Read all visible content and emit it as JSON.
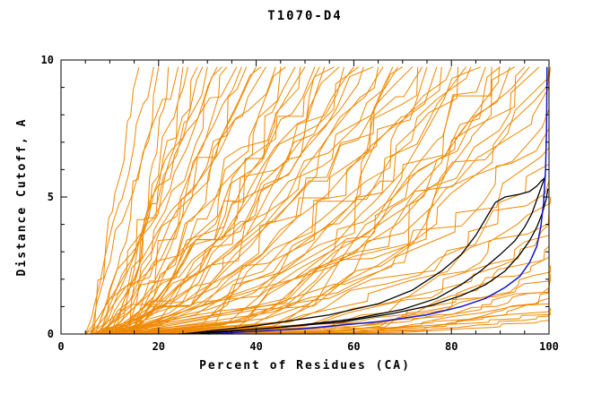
{
  "title": "T1070-D4",
  "chart_data": {
    "type": "line",
    "title": "T1070-D4",
    "xlabel": "Percent of Residues (CA)",
    "ylabel": "Distance Cutoff, A",
    "xlim": [
      0,
      100
    ],
    "ylim": [
      0,
      10
    ],
    "x_ticks": [
      0,
      20,
      40,
      60,
      80,
      100
    ],
    "y_ticks": [
      0,
      5,
      10
    ],
    "x_minor_step": 5,
    "y_minor_step": 1,
    "grid": false,
    "legend": "none",
    "frame": "full-box",
    "series_groups": [
      {
        "name": "predicted-model-curves",
        "color": "#ef8800",
        "style": "jagged-monotone-cumulative",
        "curve_format": [
          "x_start",
          "x_end",
          "y_end",
          "shape_exponent",
          "seed"
        ],
        "curves": [
          [
            6,
            16,
            9.75,
            1.0,
            1
          ],
          [
            8,
            20,
            9.75,
            1.1,
            2
          ],
          [
            5,
            24,
            9.75,
            0.9,
            3
          ],
          [
            10,
            28,
            9.75,
            1.2,
            4
          ],
          [
            7,
            30,
            9.75,
            1.0,
            5
          ],
          [
            12,
            34,
            9.75,
            1.3,
            6
          ],
          [
            6,
            36,
            9.75,
            0.95,
            7
          ],
          [
            9,
            40,
            9.75,
            1.1,
            8
          ],
          [
            14,
            22,
            9.75,
            1.0,
            9
          ],
          [
            11,
            26,
            9.75,
            1.2,
            10
          ],
          [
            8,
            32,
            9.75,
            0.9,
            11
          ],
          [
            13,
            38,
            9.75,
            1.15,
            12
          ],
          [
            5,
            19,
            9.75,
            1.05,
            13
          ],
          [
            15,
            41,
            9.75,
            1.0,
            14
          ],
          [
            10,
            25,
            9.75,
            1.3,
            15
          ],
          [
            7,
            29,
            9.75,
            1.1,
            16
          ],
          [
            12,
            37,
            9.75,
            0.95,
            17
          ],
          [
            9,
            33,
            9.75,
            1.2,
            18
          ],
          [
            6,
            42,
            9.75,
            1.2,
            19
          ],
          [
            10,
            46,
            9.75,
            1.4,
            20
          ],
          [
            8,
            50,
            9.75,
            1.1,
            21
          ],
          [
            12,
            54,
            9.75,
            1.5,
            22
          ],
          [
            7,
            58,
            9.75,
            1.3,
            23
          ],
          [
            14,
            62,
            9.75,
            1.2,
            24
          ],
          [
            9,
            66,
            9.75,
            1.6,
            25
          ],
          [
            11,
            70,
            9.75,
            1.4,
            26
          ],
          [
            5,
            44,
            9.75,
            1.0,
            27
          ],
          [
            13,
            48,
            9.75,
            1.5,
            28
          ],
          [
            8,
            52,
            9.75,
            1.2,
            29
          ],
          [
            10,
            56,
            9.75,
            1.7,
            30
          ],
          [
            6,
            60,
            9.75,
            1.3,
            31
          ],
          [
            15,
            64,
            9.75,
            1.1,
            32
          ],
          [
            9,
            68,
            9.75,
            1.5,
            33
          ],
          [
            12,
            45,
            9.75,
            1.35,
            34
          ],
          [
            7,
            49,
            9.75,
            1.6,
            35
          ],
          [
            11,
            53,
            9.75,
            1.25,
            36
          ],
          [
            14,
            57,
            9.75,
            1.45,
            37
          ],
          [
            8,
            61,
            9.75,
            1.15,
            38
          ],
          [
            10,
            65,
            9.75,
            1.55,
            39
          ],
          [
            13,
            69,
            9.75,
            1.3,
            40
          ],
          [
            7,
            72,
            9.75,
            1.6,
            41
          ],
          [
            10,
            75,
            9.75,
            1.9,
            42
          ],
          [
            12,
            78,
            9.75,
            1.7,
            43
          ],
          [
            8,
            81,
            9.75,
            2.1,
            44
          ],
          [
            14,
            84,
            9.75,
            1.8,
            45
          ],
          [
            9,
            87,
            9.75,
            2.3,
            46
          ],
          [
            11,
            90,
            9.75,
            2.0,
            47
          ],
          [
            13,
            93,
            9.75,
            2.4,
            48
          ],
          [
            6,
            96,
            9.75,
            2.2,
            49
          ],
          [
            10,
            99,
            9.75,
            2.6,
            50
          ],
          [
            8,
            74,
            9.75,
            1.7,
            51
          ],
          [
            12,
            77,
            9.75,
            2.0,
            52
          ],
          [
            15,
            80,
            9.75,
            1.8,
            53
          ],
          [
            9,
            83,
            9.75,
            2.2,
            54
          ],
          [
            11,
            86,
            9.75,
            1.9,
            55
          ],
          [
            7,
            89,
            9.75,
            2.4,
            56
          ],
          [
            13,
            92,
            9.75,
            2.1,
            57
          ],
          [
            10,
            95,
            9.75,
            2.5,
            58
          ],
          [
            8,
            98,
            9.75,
            2.3,
            59
          ],
          [
            14,
            100,
            9.75,
            2.7,
            60
          ],
          [
            6,
            73,
            9.75,
            1.8,
            61
          ],
          [
            12,
            88,
            9.75,
            2.2,
            62
          ],
          [
            10,
            100,
            9.0,
            2.0,
            63
          ],
          [
            12,
            100,
            8.2,
            2.2,
            64
          ],
          [
            8,
            100,
            7.5,
            2.4,
            65
          ],
          [
            14,
            100,
            6.8,
            2.0,
            66
          ],
          [
            9,
            100,
            6.2,
            2.6,
            67
          ],
          [
            11,
            100,
            5.6,
            2.3,
            68
          ],
          [
            13,
            100,
            5.0,
            2.8,
            69
          ],
          [
            7,
            100,
            4.5,
            2.5,
            70
          ],
          [
            15,
            100,
            4.0,
            3.0,
            71
          ],
          [
            10,
            100,
            3.6,
            2.7,
            72
          ],
          [
            12,
            100,
            3.2,
            3.2,
            73
          ],
          [
            8,
            100,
            2.8,
            2.9,
            74
          ],
          [
            14,
            100,
            2.5,
            3.4,
            75
          ],
          [
            9,
            100,
            2.2,
            3.0,
            76
          ],
          [
            11,
            100,
            1.9,
            3.6,
            77
          ],
          [
            13,
            100,
            1.7,
            3.2,
            78
          ],
          [
            7,
            100,
            1.5,
            3.8,
            79
          ],
          [
            15,
            100,
            1.3,
            3.4,
            80
          ],
          [
            10,
            100,
            1.1,
            4.0,
            81
          ],
          [
            12,
            100,
            0.95,
            3.6,
            82
          ],
          [
            8,
            100,
            0.8,
            4.2,
            83
          ],
          [
            11,
            100,
            0.65,
            3.8,
            84
          ],
          [
            9,
            100,
            0.5,
            4.4,
            85
          ]
        ]
      },
      {
        "name": "reference-curves-black",
        "color": "#000000",
        "points_format": "[x,y]",
        "curves": [
          [
            [
              25,
              0
            ],
            [
              40,
              0.3
            ],
            [
              55,
              0.7
            ],
            [
              65,
              1.1
            ],
            [
              72,
              1.6
            ],
            [
              78,
              2.3
            ],
            [
              82,
              2.9
            ],
            [
              85,
              3.6
            ],
            [
              87,
              4.2
            ],
            [
              89,
              4.8
            ],
            [
              91,
              5.0
            ],
            [
              94,
              5.1
            ],
            [
              96,
              5.2
            ],
            [
              97.5,
              5.4
            ],
            [
              98.5,
              5.6
            ],
            [
              99.2,
              5.7
            ]
          ],
          [
            [
              28,
              0
            ],
            [
              45,
              0.25
            ],
            [
              60,
              0.55
            ],
            [
              70,
              0.9
            ],
            [
              77,
              1.3
            ],
            [
              82,
              1.8
            ],
            [
              86,
              2.3
            ],
            [
              90,
              2.9
            ],
            [
              93,
              3.4
            ],
            [
              95,
              3.9
            ],
            [
              96.5,
              4.4
            ],
            [
              97.5,
              4.9
            ],
            [
              98.5,
              5.4
            ],
            [
              99.3,
              5.8
            ]
          ],
          [
            [
              24,
              0
            ],
            [
              42,
              0.2
            ],
            [
              58,
              0.45
            ],
            [
              68,
              0.75
            ],
            [
              76,
              1.05
            ],
            [
              82,
              1.4
            ],
            [
              87,
              1.8
            ],
            [
              91,
              2.3
            ],
            [
              94,
              2.9
            ],
            [
              96,
              3.4
            ],
            [
              97.5,
              3.9
            ],
            [
              98.6,
              4.4
            ],
            [
              99.4,
              4.9
            ],
            [
              99.8,
              5.3
            ]
          ]
        ]
      },
      {
        "name": "best-model-curve-blue",
        "color": "#1414cc",
        "points_format": "[x,y]",
        "curves": [
          [
            [
              30,
              0
            ],
            [
              50,
              0.2
            ],
            [
              65,
              0.45
            ],
            [
              75,
              0.7
            ],
            [
              82,
              1.0
            ],
            [
              87,
              1.3
            ],
            [
              91,
              1.7
            ],
            [
              94,
              2.1
            ],
            [
              96,
              2.6
            ],
            [
              97.5,
              3.2
            ],
            [
              98.3,
              3.9
            ],
            [
              98.9,
              4.8
            ],
            [
              99.3,
              6.0
            ],
            [
              99.5,
              7.5
            ],
            [
              99.6,
              9.75
            ]
          ]
        ]
      }
    ]
  }
}
